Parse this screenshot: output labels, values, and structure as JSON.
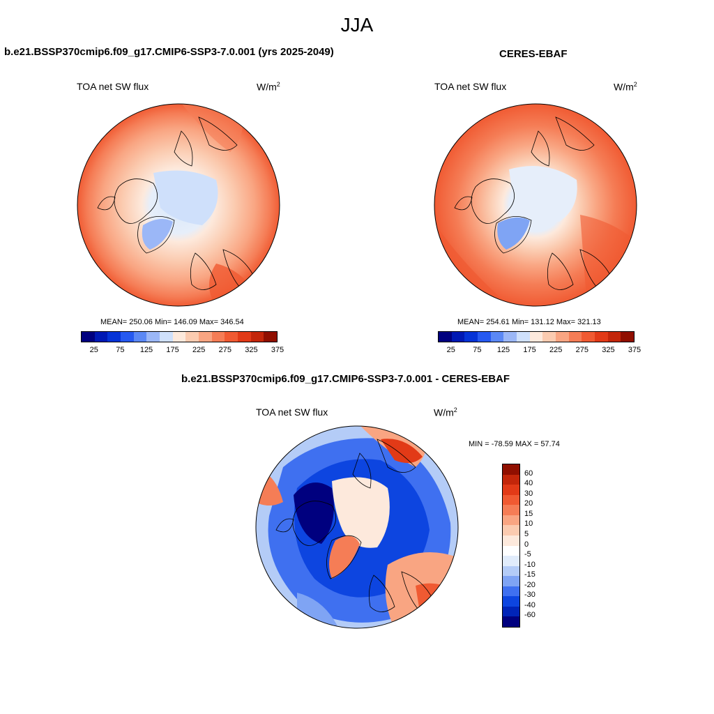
{
  "figure": {
    "title": "JJA"
  },
  "panels": [
    {
      "title": "b.e21.BSSP370cmip6.f09_g17.CMIP6-SSP3-7.0.001 (yrs 2025-2049)",
      "field": "TOA net SW flux",
      "units": "W/m",
      "units_sup": "2",
      "stats": "MEAN= 250.06  Min= 146.09  Max= 346.54",
      "mean": 250.06,
      "min": 146.09,
      "max": 346.54
    },
    {
      "title": "CERES-EBAF",
      "field": "TOA net SW flux",
      "units": "W/m",
      "units_sup": "2",
      "stats": "MEAN= 254.61  Min= 131.12  Max= 321.13",
      "mean": 254.61,
      "min": 131.12,
      "max": 321.13
    },
    {
      "title": "b.e21.BSSP370cmip6.f09_g17.CMIP6-SSP3-7.0.001 - CERES-EBAF",
      "field": "TOA net SW flux",
      "units": "W/m",
      "units_sup": "2",
      "stats": "MIN = -78.59 MAX =  57.74",
      "min": -78.59,
      "max": 57.74
    }
  ],
  "colorbar_abs": {
    "labels": [
      "25",
      "75",
      "125",
      "175",
      "225",
      "275",
      "325",
      "375"
    ],
    "colors": [
      "#00007f",
      "#0019b4",
      "#0533d6",
      "#2659f0",
      "#5b88f5",
      "#9bb7f7",
      "#cfe0fb",
      "#fde9dc",
      "#fbcbb0",
      "#f9a582",
      "#f57d56",
      "#f05a32",
      "#e23a17",
      "#c3260a",
      "#900f00"
    ]
  },
  "colorbar_diff": {
    "labels": [
      "60",
      "40",
      "30",
      "20",
      "15",
      "10",
      "5",
      "0",
      "-5",
      "-10",
      "-15",
      "-20",
      "-30",
      "-40",
      "-60"
    ],
    "colors": [
      "#900f00",
      "#c3260a",
      "#e23a17",
      "#f05a32",
      "#f57d56",
      "#f9a582",
      "#fbcbb0",
      "#fde9dc",
      "#e1ecfb",
      "#b4ccf7",
      "#7fa4f4",
      "#3f70f0",
      "#0d45e0",
      "#0024b8",
      "#00007f"
    ]
  }
}
